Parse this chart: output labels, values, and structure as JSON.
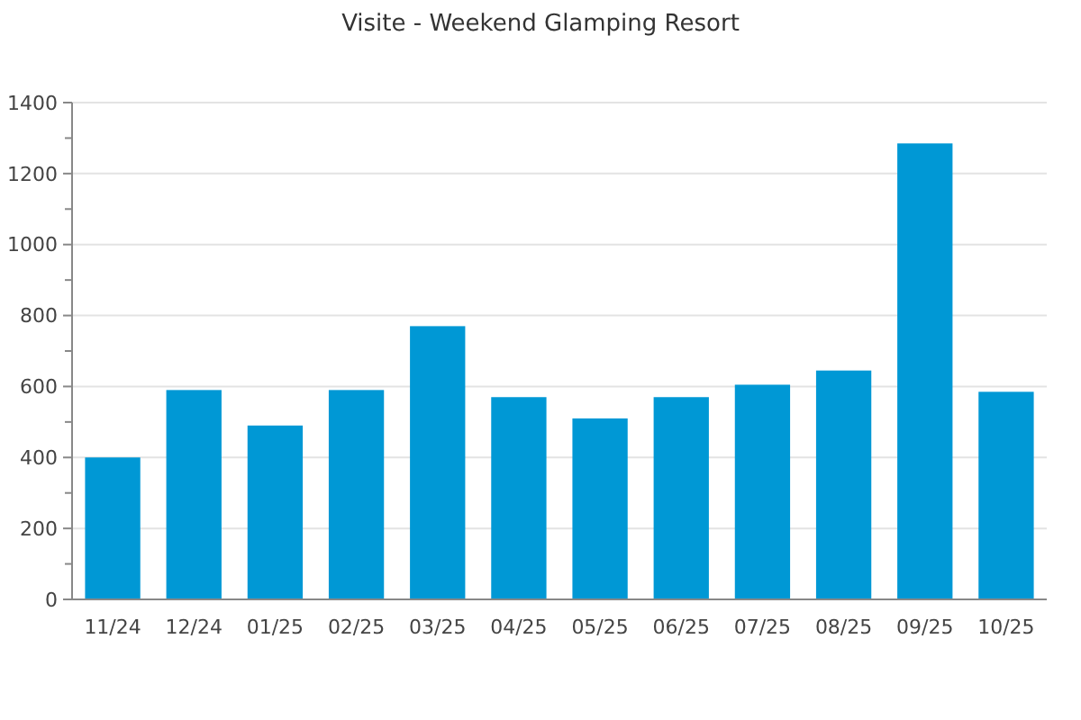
{
  "chart_data": {
    "type": "bar",
    "title": "Visite - Weekend Glamping Resort",
    "categories": [
      "11/24",
      "12/24",
      "01/25",
      "02/25",
      "03/25",
      "04/25",
      "05/25",
      "06/25",
      "07/25",
      "08/25",
      "09/25",
      "10/25"
    ],
    "values": [
      400,
      590,
      490,
      590,
      770,
      570,
      510,
      570,
      605,
      645,
      1285,
      585
    ],
    "color": "#0098d5",
    "ylim": [
      0,
      1400
    ],
    "yticks": [
      0,
      {
        "value": 100,
        "label": null
      },
      200,
      {
        "value": 300,
        "label": null
      },
      400,
      {
        "value": 500,
        "label": null
      },
      600,
      {
        "value": 700,
        "label": null
      },
      800,
      {
        "value": 900,
        "label": null
      },
      1000,
      {
        "value": 1100,
        "label": null
      },
      1200,
      {
        "value": 1300,
        "label": null
      },
      1400
    ],
    "grid": "y"
  }
}
